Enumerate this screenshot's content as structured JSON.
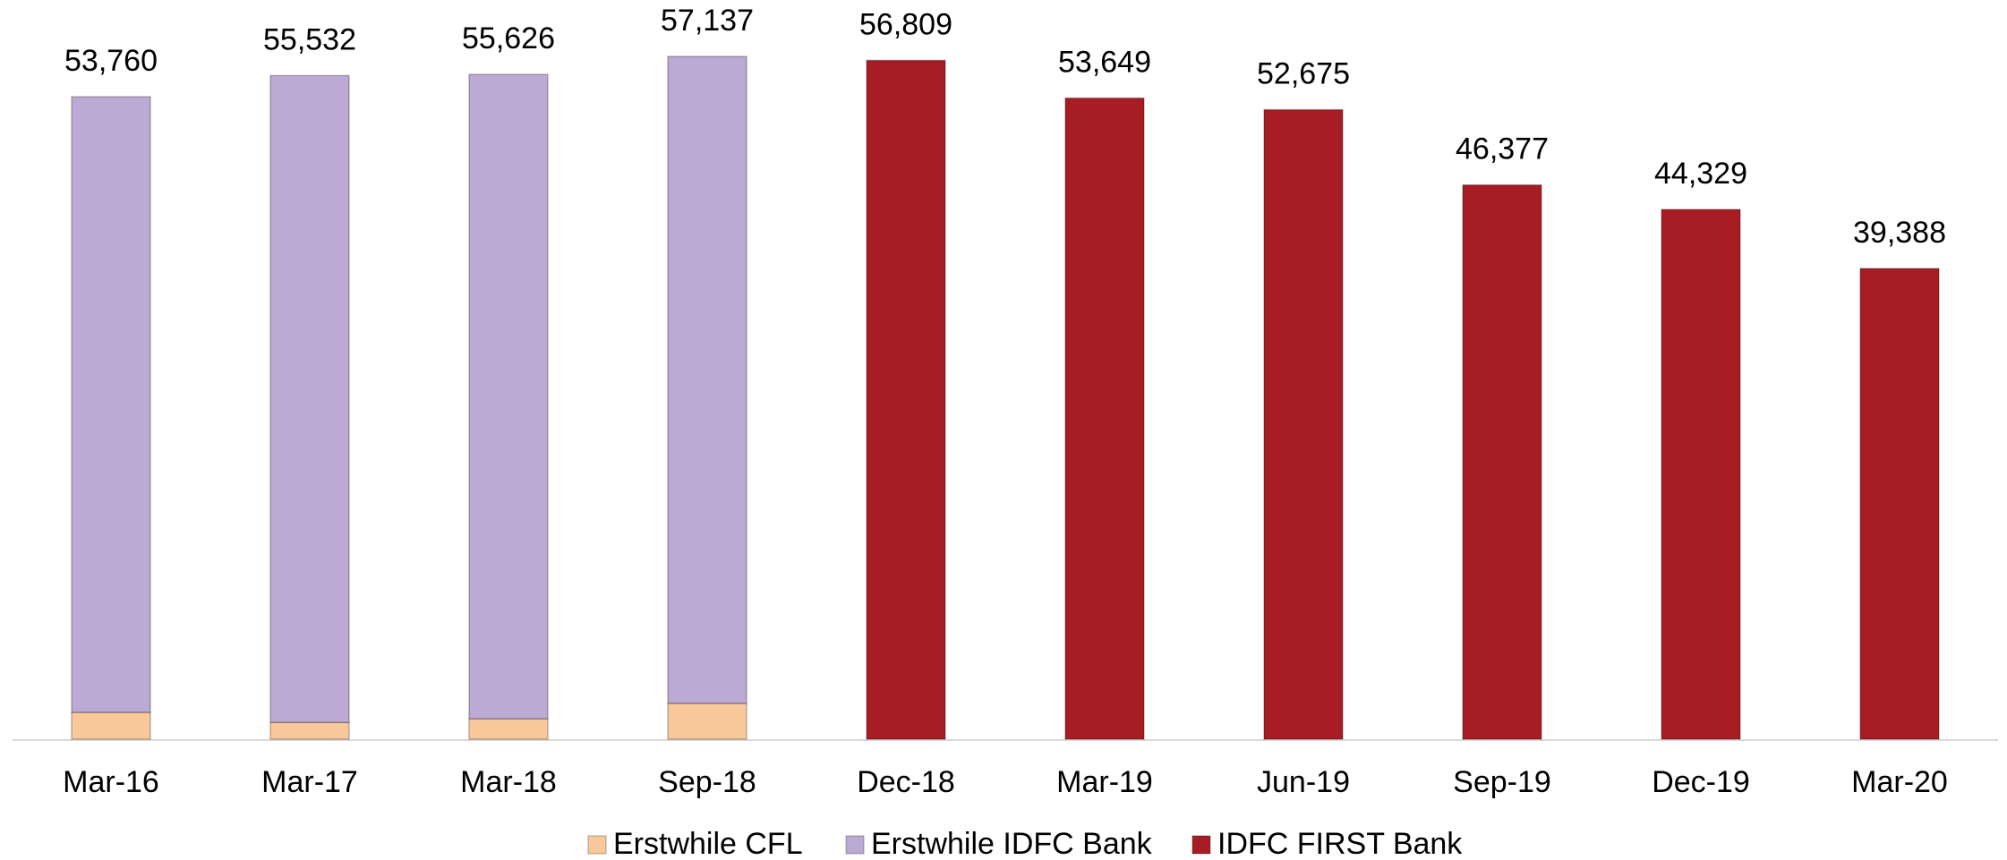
{
  "chart_data": {
    "type": "stacked_bar",
    "categories": [
      "Mar-16",
      "Mar-17",
      "Mar-18",
      "Sep-18",
      "Dec-18",
      "Mar-19",
      "Jun-19",
      "Sep-19",
      "Dec-19",
      "Mar-20"
    ],
    "series": [
      {
        "name": "Erstwhile CFL",
        "color": "#f9c89b",
        "values": [
          2250,
          1400,
          1700,
          3000,
          null,
          null,
          null,
          null,
          null,
          null
        ]
      },
      {
        "name": "Erstwhile IDFC Bank",
        "color": "#bca9d4",
        "values": [
          51510,
          54132,
          53926,
          54137,
          null,
          null,
          null,
          null,
          null,
          null
        ]
      },
      {
        "name": "IDFC FIRST Bank",
        "color": "#a81c24",
        "values": [
          null,
          null,
          null,
          null,
          56809,
          53649,
          52675,
          46377,
          44329,
          39388
        ]
      }
    ],
    "totals": [
      53760,
      55532,
      55626,
      57137,
      56809,
      53649,
      52675,
      46377,
      44329,
      39388
    ],
    "value_labels": [
      "53,760",
      "55,532",
      "55,626",
      "57,137",
      "56,809",
      "53,649",
      "52,675",
      "46,377",
      "44,329",
      "39,388"
    ],
    "legend": "bottom"
  }
}
